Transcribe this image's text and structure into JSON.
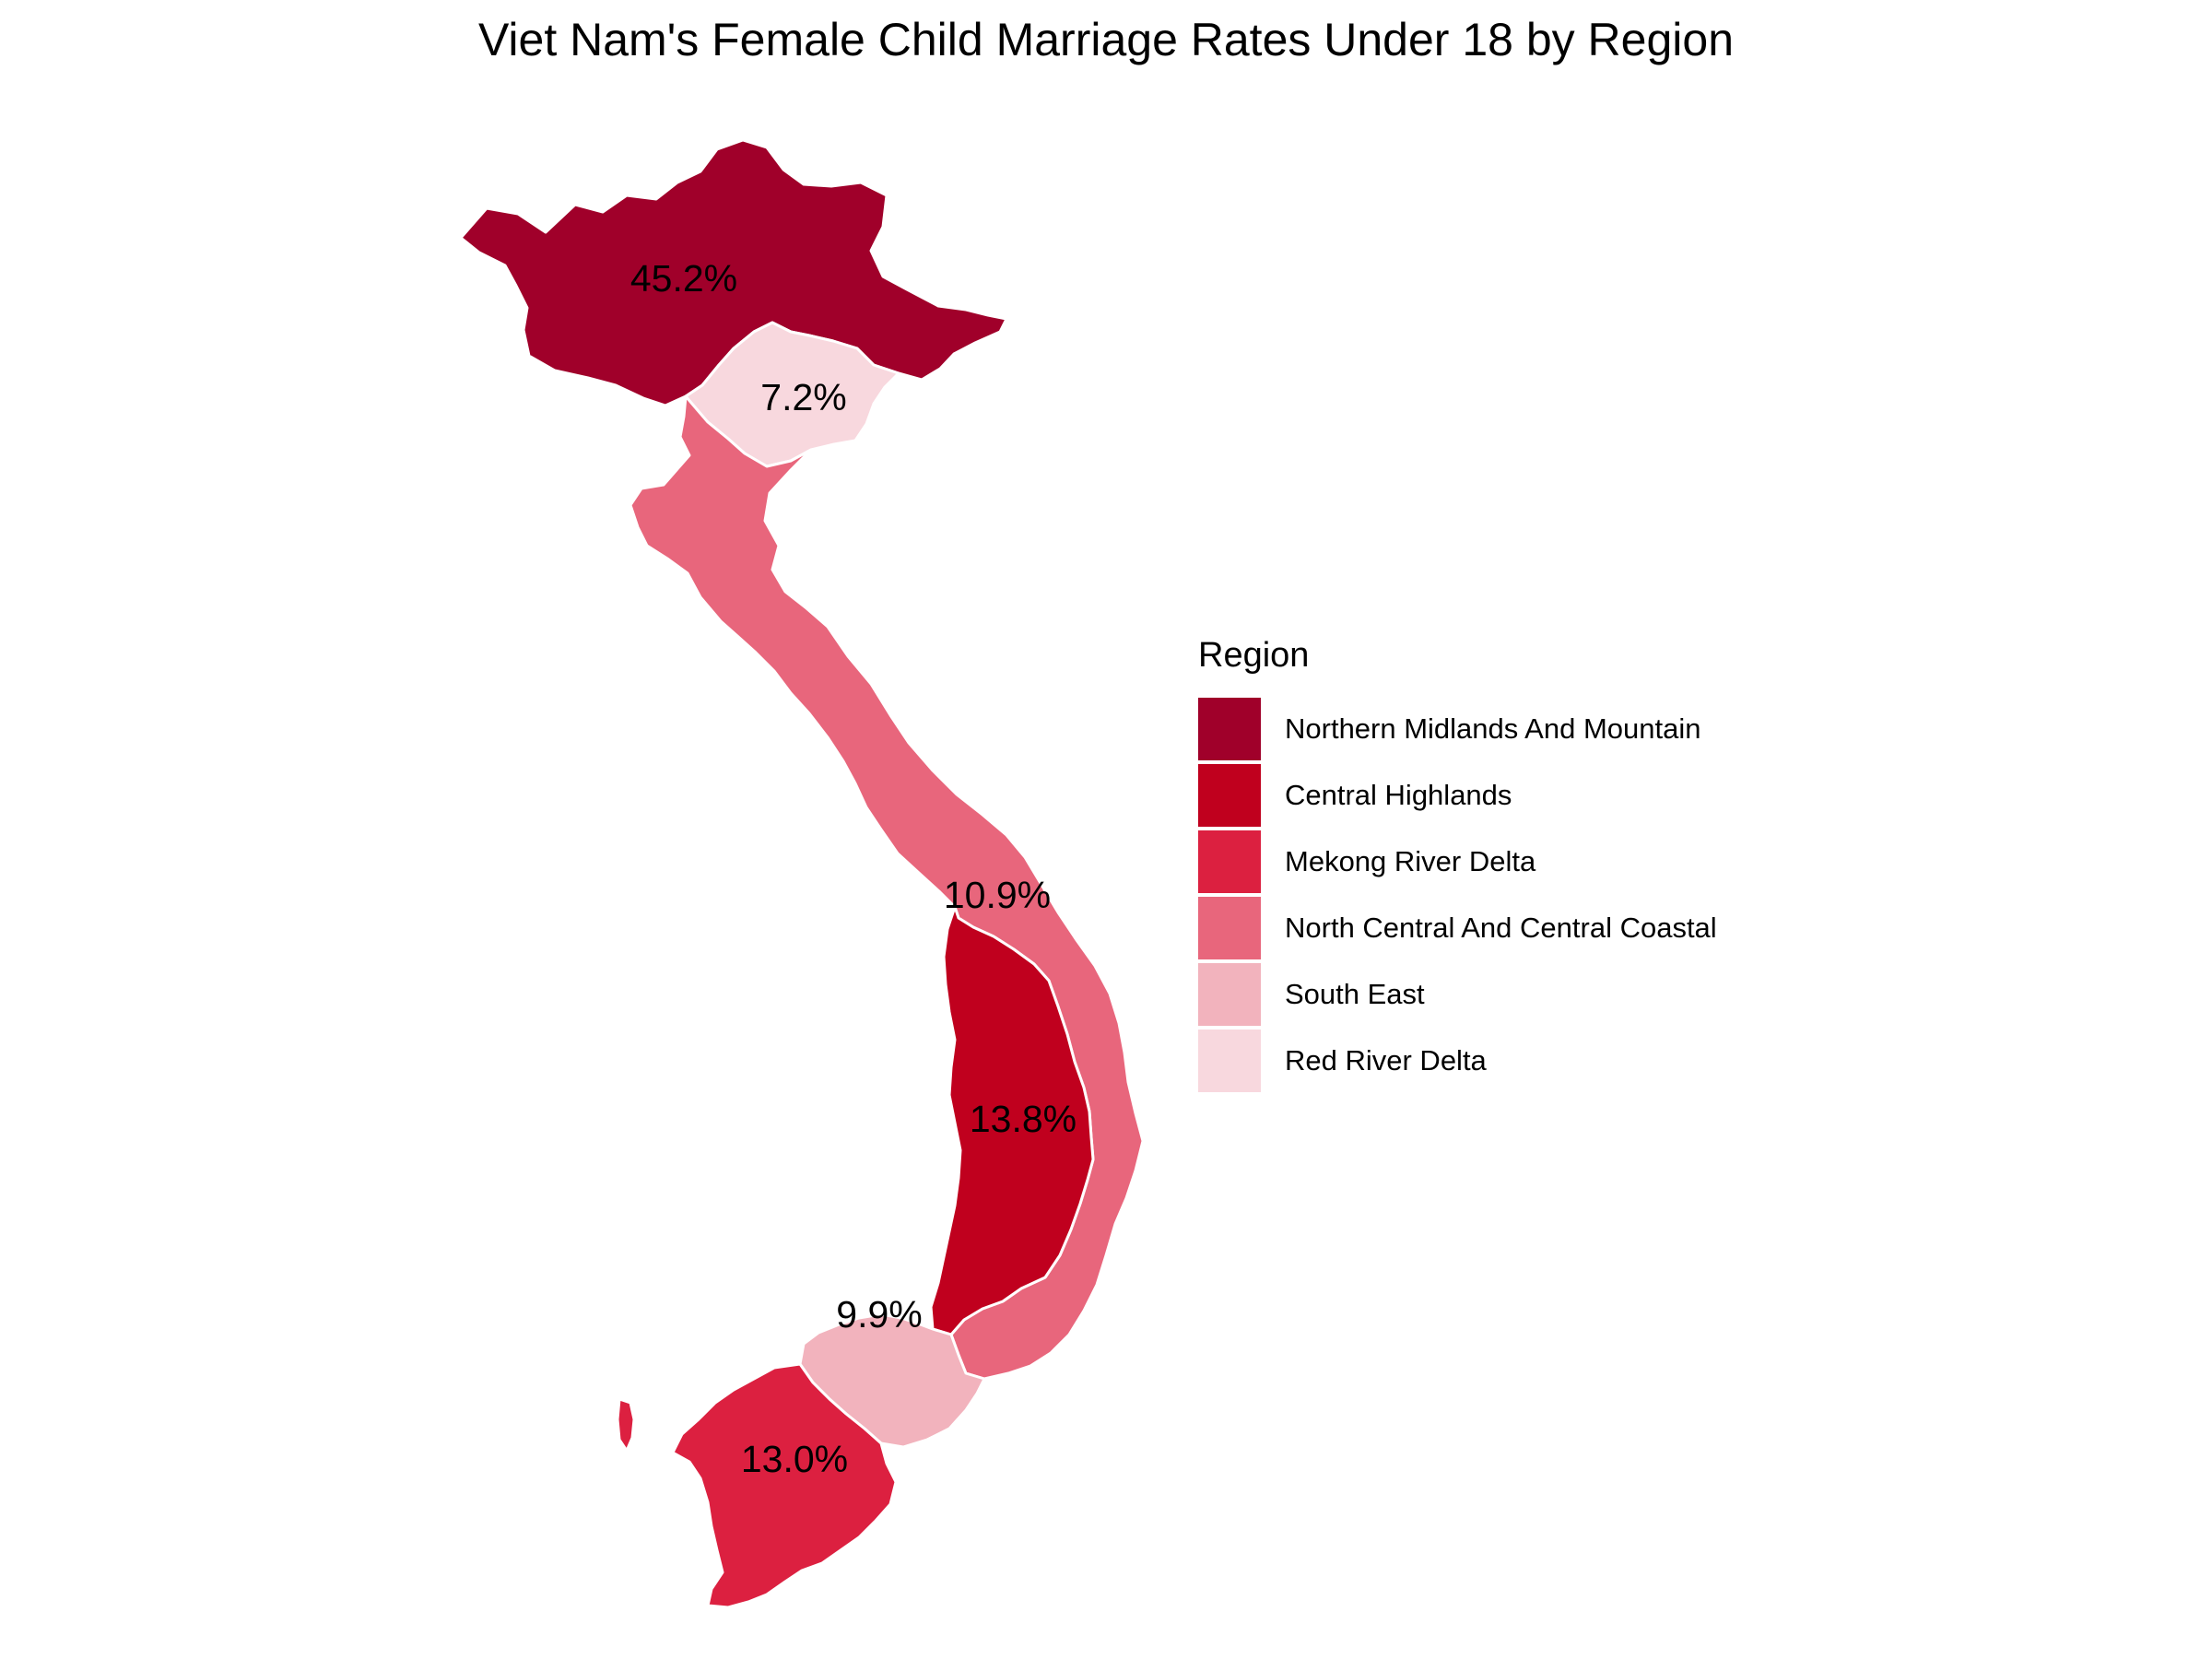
{
  "title": "Viet Nam's Female Child Marriage Rates Under 18 by Region",
  "legend": {
    "title": "Region",
    "items": [
      {
        "label": "Northern Midlands And Mountain",
        "color": "#a0002a"
      },
      {
        "label": "Central Highlands",
        "color": "#c0001e"
      },
      {
        "label": "Mekong River Delta",
        "color": "#dc2040"
      },
      {
        "label": "North Central And Central Coastal",
        "color": "#e8667c"
      },
      {
        "label": "South East",
        "color": "#f2b3bd"
      },
      {
        "label": "Red River Delta",
        "color": "#f8d8de"
      }
    ]
  },
  "regions": [
    {
      "name": "Northern Midlands And Mountain",
      "rate": "45.2%"
    },
    {
      "name": "Red River Delta",
      "rate": "7.2%"
    },
    {
      "name": "North Central And Central Coastal",
      "rate": "10.9%"
    },
    {
      "name": "Central Highlands",
      "rate": "13.8%"
    },
    {
      "name": "South East",
      "rate": "9.9%"
    },
    {
      "name": "Mekong River Delta",
      "rate": "13.0%"
    }
  ]
}
